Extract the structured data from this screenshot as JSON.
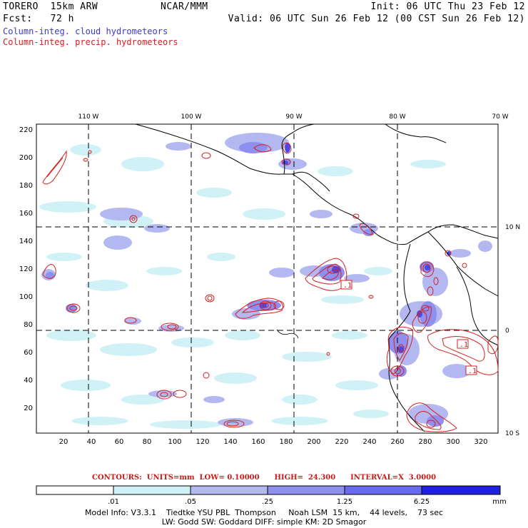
{
  "header": {
    "model_name": "TORERO  15km ARW",
    "center": "NCAR/MMM",
    "init": "Init: 06 UTC Thu 23 Feb 12",
    "fcst": "Fcst:   72 h",
    "valid": "Valid: 06 UTC Sun 26 Feb 12 (00 CST Sun 26 Feb 12)"
  },
  "legend": {
    "cloud": "Column-integ. cloud hydrometeors",
    "precip": "Column-integ. precip. hydrometeors"
  },
  "colors": {
    "cloud_text": "#3a3ad0",
    "precip_text": "#d42020",
    "contour": "#d42020",
    "shade": [
      "#ffffff",
      "#d0f2f7",
      "#b4b8f0",
      "#8f8ff0",
      "#6a6af0",
      "#2020e0"
    ]
  },
  "axes": {
    "top_lon_labels": [
      "110 W",
      "100 W",
      "90 W",
      "80 W",
      "70 W"
    ],
    "right_lat_labels": [
      "10 N",
      "0",
      "10 S"
    ],
    "left_ticks": [
      "220",
      "200",
      "180",
      "160",
      "140",
      "120",
      "100",
      "80",
      "60",
      "40",
      "20"
    ],
    "bottom_ticks": [
      "20",
      "40",
      "60",
      "80",
      "100",
      "120",
      "140",
      "160",
      "180",
      "200",
      "220",
      "240",
      "260",
      "280",
      "300",
      "320"
    ]
  },
  "contours_info": "CONTOURS:  UNITS=mm  LOW= 0.10000      HIGH=  24.300      INTERVAL=X  3.0000",
  "colorbar": {
    "labels": [
      ".01",
      ".05",
      ".25",
      "1.25",
      "6.25"
    ],
    "units": "mm"
  },
  "contour_labels": [
    ".1",
    ".1",
    ".1"
  ],
  "model_info": {
    "line1": "Model Info: V3.3.1    Tiedtke YSU PBL  Thompson     Noah LSM  15 km,    44 levels,    73 sec",
    "line2": "LW: Godd SW: Goddard DIFF: simple KM: 2D Smagor"
  }
}
